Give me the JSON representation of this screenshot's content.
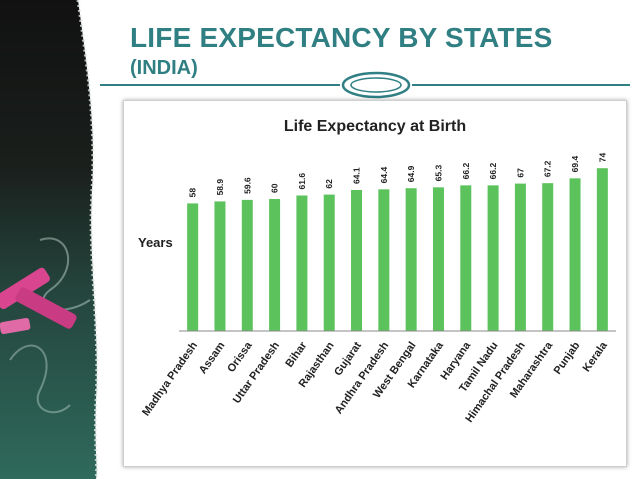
{
  "slide": {
    "title": "LIFE EXPECTANCY BY STATES",
    "subtitle": "(INDIA)",
    "accent_color": "#2f7f83"
  },
  "chart_data": {
    "type": "bar",
    "title": "Life Expectancy at Birth",
    "ylabel": "Years",
    "xlabel": "",
    "categories": [
      "Madhya Pradesh",
      "Assam",
      "Orissa",
      "Uttar Pradesh",
      "Bihar",
      "Rajasthan",
      "Gujarat",
      "Andhra Pradesh",
      "West Bengal",
      "Karnataka",
      "Haryana",
      "Tamil Nadu",
      "Himachal Pradesh",
      "Maharashtra",
      "Punjab",
      "Kerala"
    ],
    "values": [
      58,
      58.9,
      59.6,
      60,
      61.6,
      62,
      64.1,
      64.4,
      64.9,
      65.3,
      66.2,
      66.2,
      67,
      67.2,
      69.4,
      74
    ],
    "data_labels": [
      "58",
      "58.9",
      "59.6",
      "60",
      "61.6",
      "62",
      "64.1",
      "64.4",
      "64.9",
      "65.3",
      "66.2",
      "66.2",
      "67",
      "67.2",
      "69.4",
      "74"
    ],
    "ylim": [
      0,
      100
    ],
    "bar_color": "#5cc25c",
    "grid": false,
    "legend": "none"
  }
}
